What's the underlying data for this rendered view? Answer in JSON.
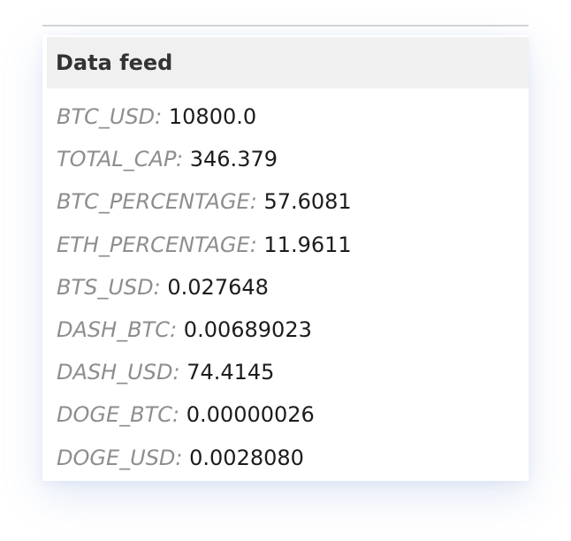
{
  "panel": {
    "title": "Data feed",
    "items": [
      {
        "key": "BTC_USD:",
        "value": "10800.0"
      },
      {
        "key": "TOTAL_CAP:",
        "value": "346.379"
      },
      {
        "key": "BTC_PERCENTAGE:",
        "value": "57.6081"
      },
      {
        "key": "ETH_PERCENTAGE:",
        "value": "11.9611"
      },
      {
        "key": "BTS_USD:",
        "value": "0.027648"
      },
      {
        "key": "DASH_BTC:",
        "value": "0.00689023"
      },
      {
        "key": "DASH_USD:",
        "value": "74.4145"
      },
      {
        "key": "DOGE_BTC:",
        "value": "0.00000026"
      },
      {
        "key": "DOGE_USD:",
        "value": "0.0028080"
      }
    ]
  }
}
